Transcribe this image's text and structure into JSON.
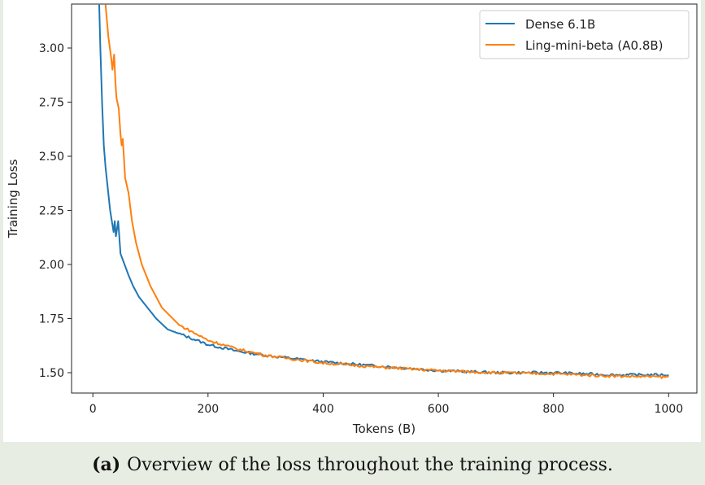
{
  "chart_data": {
    "type": "line",
    "title": "",
    "xlabel": "Tokens (B)",
    "ylabel": "Training Loss",
    "xlim": [
      -37,
      1049
    ],
    "ylim": [
      1.406,
      3.203
    ],
    "xticks": [
      0,
      200,
      400,
      600,
      800,
      1000
    ],
    "xtick_labels": [
      "0",
      "200",
      "400",
      "600",
      "800",
      "1000"
    ],
    "yticks": [
      1.5,
      1.75,
      2.0,
      2.25,
      2.5,
      2.75,
      3.0
    ],
    "ytick_labels": [
      "1.50",
      "1.75",
      "2.00",
      "2.25",
      "2.50",
      "2.75",
      "3.00"
    ],
    "grid": false,
    "legend_position": "top-right",
    "series": [
      {
        "name": "Dense 6.1B",
        "color": "#1f77b4",
        "x": [
          11,
          13,
          16,
          19,
          22,
          26,
          30,
          36,
          38,
          40,
          44,
          48,
          55,
          62,
          70,
          80,
          95,
          110,
          130,
          160,
          200,
          250,
          300,
          400,
          500,
          600,
          700,
          800,
          900,
          1000
        ],
        "y": [
          3.2,
          3.0,
          2.75,
          2.55,
          2.45,
          2.35,
          2.25,
          2.15,
          2.2,
          2.13,
          2.2,
          2.05,
          2.0,
          1.95,
          1.9,
          1.85,
          1.8,
          1.75,
          1.7,
          1.67,
          1.63,
          1.6,
          1.58,
          1.55,
          1.53,
          1.51,
          1.5,
          1.5,
          1.49,
          1.49
        ]
      },
      {
        "name": "Ling-mini-beta (A0.8B)",
        "color": "#ff7f0e",
        "x": [
          22,
          27,
          32,
          34,
          37,
          39,
          41,
          45,
          48,
          50,
          52,
          56,
          62,
          68,
          75,
          85,
          100,
          120,
          150,
          200,
          250,
          300,
          400,
          500,
          600,
          700,
          800,
          900,
          1000
        ],
        "y": [
          3.2,
          3.05,
          2.95,
          2.9,
          2.97,
          2.85,
          2.77,
          2.72,
          2.6,
          2.55,
          2.58,
          2.4,
          2.33,
          2.2,
          2.1,
          2.0,
          1.9,
          1.8,
          1.72,
          1.65,
          1.61,
          1.58,
          1.545,
          1.525,
          1.51,
          1.5,
          1.495,
          1.485,
          1.48
        ]
      }
    ]
  },
  "caption": {
    "label": "(a)",
    "text": "Overview of the loss throughout the training process."
  }
}
